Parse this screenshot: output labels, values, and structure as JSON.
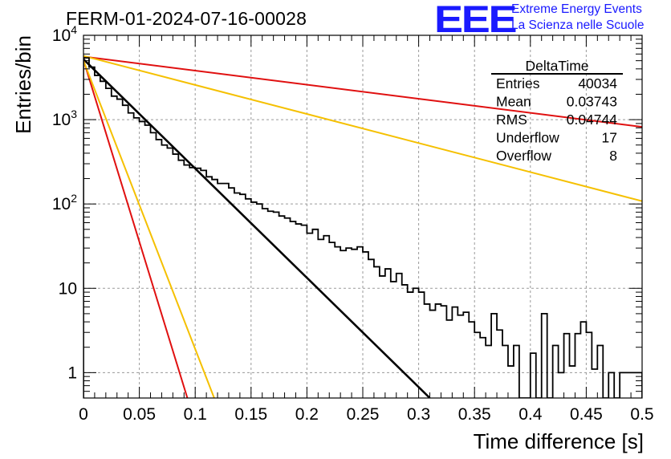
{
  "header": {
    "run_title": "FERM-01-2024-07-16-00028",
    "logo_text": "EEE",
    "logo_line1": "Extreme Energy Events",
    "logo_line2": "La Scienza nelle Scuole"
  },
  "colors": {
    "histogram": "#000000",
    "fit_main": "#000000",
    "fit_red": "#e01010",
    "fit_yellow": "#f5c000",
    "grid": "#9a9a9a",
    "logo": "#1a1aff"
  },
  "chart_data": {
    "type": "line",
    "xlabel": "Time difference [s]",
    "ylabel": "Entries/bin",
    "xlim": [
      0,
      0.5
    ],
    "ylim": [
      0.5,
      10000
    ],
    "yscale": "log",
    "grid": true,
    "x_ticks": [
      "0",
      "0.05",
      "0.1",
      "0.15",
      "0.2",
      "0.25",
      "0.3",
      "0.35",
      "0.4",
      "0.45",
      "0.5"
    ],
    "y_ticks": [
      {
        "value": 1,
        "label": "1"
      },
      {
        "value": 10,
        "label": "10"
      },
      {
        "value": 100,
        "label": "10^2"
      },
      {
        "value": 1000,
        "label": "10^3"
      },
      {
        "value": 10000,
        "label": "10^4"
      }
    ],
    "stats": {
      "title": "DeltaTime",
      "rows": [
        {
          "label": "Entries",
          "value": "40034"
        },
        {
          "label": "Mean",
          "value": "0.03743"
        },
        {
          "label": "RMS",
          "value": "0.04744"
        },
        {
          "label": "Underflow",
          "value": "17"
        },
        {
          "label": "Overflow",
          "value": "8"
        }
      ]
    },
    "histogram": {
      "bin_width": 0.005,
      "counts": [
        5400,
        4200,
        3350,
        2850,
        2350,
        1900,
        1750,
        1480,
        1200,
        1050,
        950,
        860,
        700,
        580,
        500,
        460,
        390,
        330,
        290,
        270,
        265,
        250,
        210,
        195,
        175,
        175,
        155,
        135,
        130,
        115,
        105,
        100,
        88,
        82,
        80,
        72,
        68,
        62,
        58,
        56,
        45,
        50,
        38,
        42,
        35,
        31,
        28,
        30,
        29,
        31,
        27,
        22,
        18,
        14,
        17,
        12,
        15,
        11,
        9,
        10,
        9,
        6.5,
        5.5,
        6.5,
        6.2,
        4.2,
        6.0,
        4.8,
        5.2,
        4.0,
        3.0,
        2.6,
        2.1,
        5.0,
        3.2,
        2.1,
        1.2,
        2.1,
        0.5,
        0.5,
        1.7,
        0.5,
        5.0,
        0.5,
        2.1,
        1.0,
        2.9,
        1.2,
        2.9,
        4.0,
        3.0,
        1.1,
        2.1,
        0.5,
        1.0,
        0.5,
        1.0,
        1.0,
        1.0,
        1.0
      ],
      "overflow_zero": 0.5
    },
    "series": [
      {
        "color": "black",
        "x": [
          0,
          0.31
        ],
        "y": [
          5200,
          0.5
        ]
      },
      {
        "color": "red",
        "x": [
          0,
          0.5
        ],
        "y": [
          5600,
          820
        ]
      },
      {
        "color": "yellow",
        "x": [
          0,
          0.5
        ],
        "y": [
          5700,
          108
        ]
      },
      {
        "color": "red",
        "x": [
          0,
          0.093
        ],
        "y": [
          5100,
          0.5
        ]
      },
      {
        "color": "yellow",
        "x": [
          0,
          0.117
        ],
        "y": [
          5000,
          0.5
        ]
      }
    ]
  }
}
